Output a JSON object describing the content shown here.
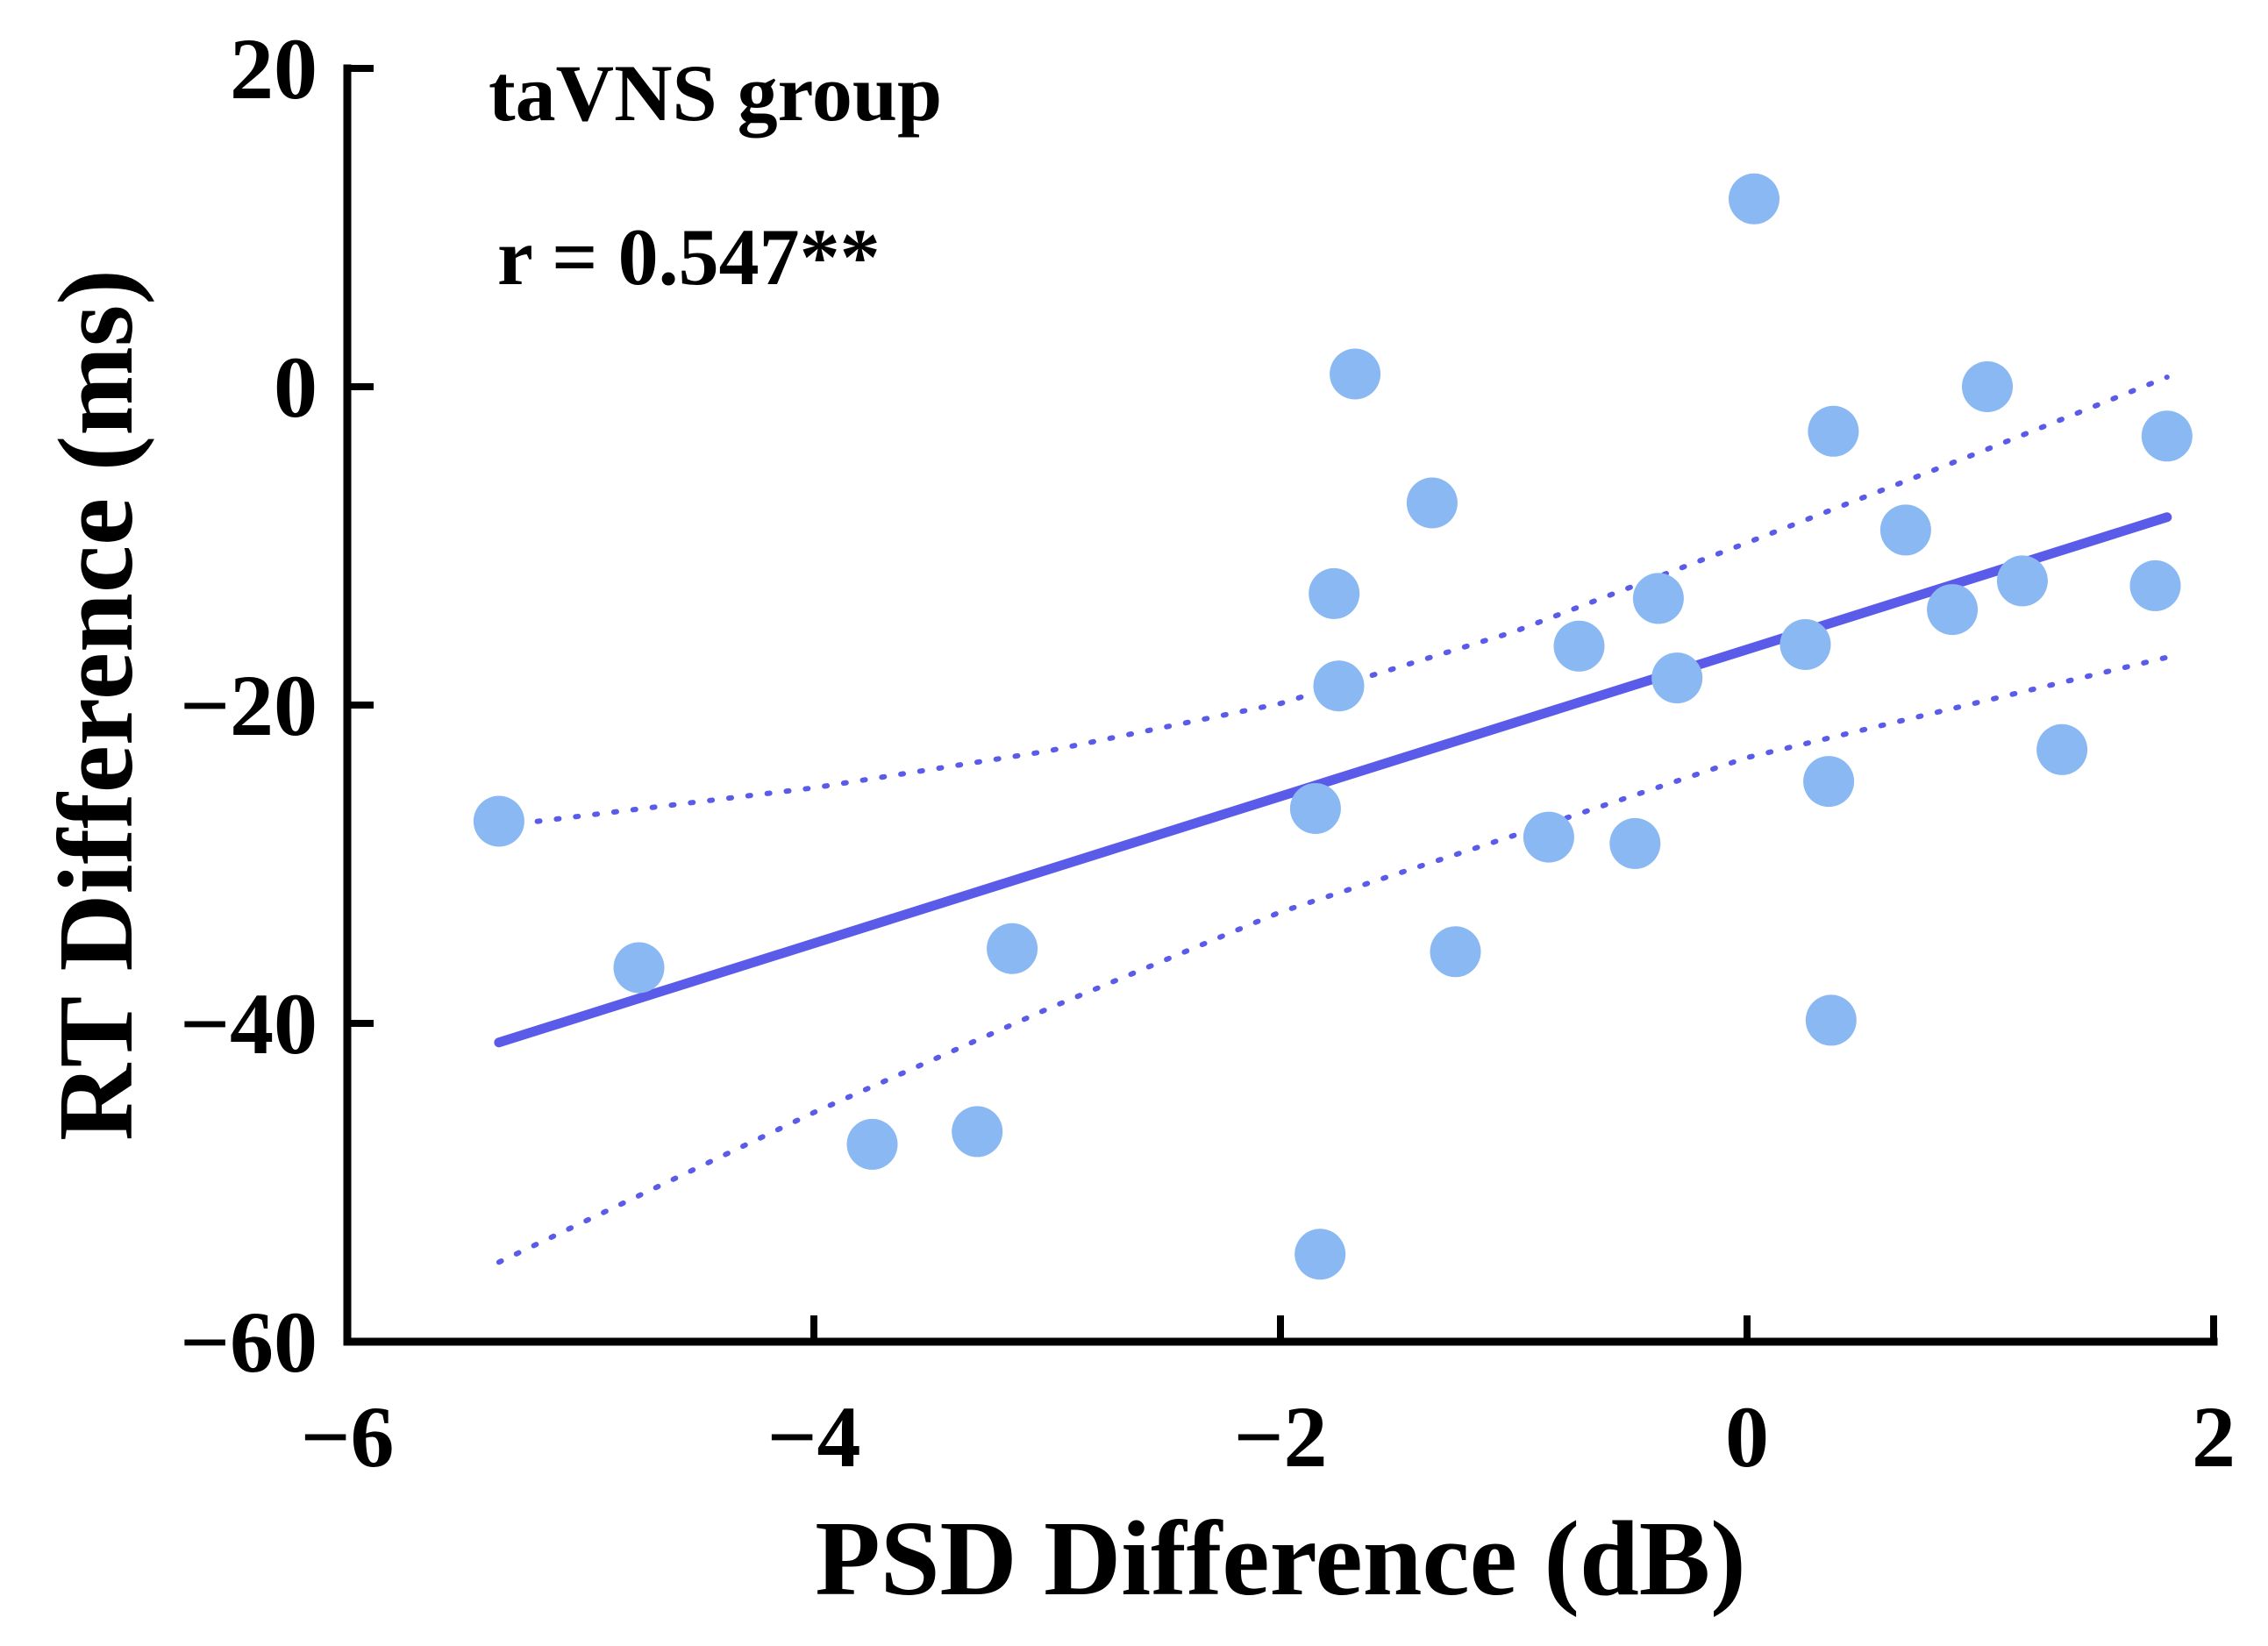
{
  "chart_data": {
    "type": "scatter",
    "title": "",
    "xlabel": "PSD Difference (dB)",
    "ylabel": "RT Difference (ms)",
    "xlim": [
      -6,
      2
    ],
    "ylim": [
      -60,
      20
    ],
    "xticks": [
      -6,
      -4,
      -2,
      0,
      2
    ],
    "yticks": [
      -60,
      -40,
      -20,
      0,
      20
    ],
    "xtick_labels": [
      "−6",
      "−4",
      "−2",
      "0",
      "2"
    ],
    "ytick_labels": [
      "−60",
      "−40",
      "−20",
      "0",
      "20"
    ],
    "grid": false,
    "annotations": {
      "group": "taVNS group",
      "correlation": "r = 0.547**"
    },
    "series": [
      {
        "name": "participants",
        "kind": "scatter",
        "color": "#8ab8f2",
        "points": [
          {
            "x": -5.35,
            "y": -27.3
          },
          {
            "x": -4.75,
            "y": -36.5
          },
          {
            "x": -3.75,
            "y": -47.6
          },
          {
            "x": -3.3,
            "y": -46.8
          },
          {
            "x": -3.15,
            "y": -35.3
          },
          {
            "x": -1.85,
            "y": -26.5
          },
          {
            "x": -1.83,
            "y": -54.5
          },
          {
            "x": -1.77,
            "y": -13.0
          },
          {
            "x": -1.75,
            "y": -18.8
          },
          {
            "x": -1.68,
            "y": 0.8
          },
          {
            "x": -1.35,
            "y": -7.3
          },
          {
            "x": -1.25,
            "y": -35.5
          },
          {
            "x": -0.85,
            "y": -28.3
          },
          {
            "x": -0.72,
            "y": -16.3
          },
          {
            "x": -0.48,
            "y": -28.7
          },
          {
            "x": -0.38,
            "y": -13.3
          },
          {
            "x": -0.3,
            "y": -18.3
          },
          {
            "x": 0.03,
            "y": 11.8
          },
          {
            "x": 0.25,
            "y": -16.2
          },
          {
            "x": 0.35,
            "y": -24.8
          },
          {
            "x": 0.36,
            "y": -39.8
          },
          {
            "x": 0.37,
            "y": -2.8
          },
          {
            "x": 0.68,
            "y": -9.0
          },
          {
            "x": 0.88,
            "y": -14.0
          },
          {
            "x": 1.03,
            "y": 0.0
          },
          {
            "x": 1.18,
            "y": -12.2
          },
          {
            "x": 1.35,
            "y": -22.8
          },
          {
            "x": 1.75,
            "y": -12.5
          },
          {
            "x": 1.8,
            "y": -3.1
          }
        ]
      },
      {
        "name": "regression line",
        "kind": "line",
        "style": "solid",
        "color": "#5b5bea",
        "x": [
          -5.35,
          1.8
        ],
        "y": [
          -41.2,
          -8.2
        ]
      },
      {
        "name": "upper confidence band",
        "kind": "line",
        "style": "dotted",
        "color": "#5b5bea",
        "x": [
          -5.35,
          -4.0,
          -3.0,
          -2.0,
          -1.0,
          0.0,
          1.0,
          1.8
        ],
        "y": [
          -27.6,
          -25.2,
          -22.9,
          -19.9,
          -15.4,
          -9.8,
          -4.1,
          0.6
        ]
      },
      {
        "name": "lower confidence band",
        "kind": "line",
        "style": "dotted",
        "color": "#5b5bea",
        "x": [
          -5.35,
          -4.0,
          -3.0,
          -2.0,
          -1.0,
          0.0,
          1.0,
          1.8
        ],
        "y": [
          -55.0,
          -45.6,
          -39.1,
          -33.0,
          -28.2,
          -23.3,
          -19.8,
          -17.0
        ]
      }
    ]
  }
}
